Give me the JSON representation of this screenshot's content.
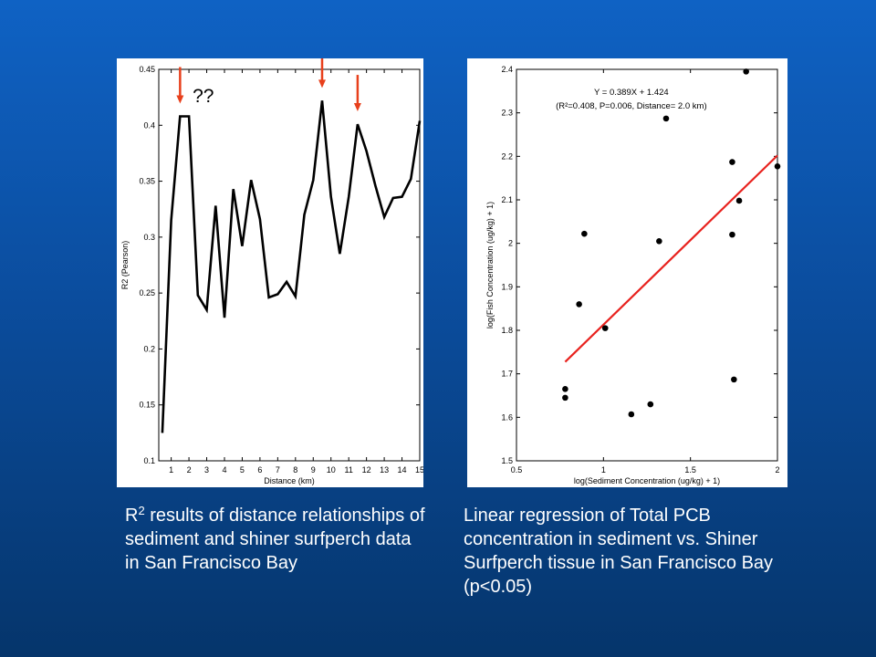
{
  "slide": {
    "background_top": "#0f62c4",
    "background_bottom": "#05356b",
    "left_caption": {
      "symbol": "R",
      "superscript": "2",
      "text": " results of distance relationships of sediment and shiner surfperch data in San Francisco Bay"
    },
    "right_caption": "Linear regression of Total PCB concentration in sediment vs. Shiner Surfperch tissue in San Francisco Bay (p<0.05)"
  },
  "chart_data": [
    {
      "type": "line",
      "xlabel": "Distance (km)",
      "ylabel": "R2 (Pearson)",
      "xlim": [
        0.3,
        15
      ],
      "ylim": [
        0.1,
        0.45
      ],
      "xticks": [
        1,
        2,
        3,
        4,
        5,
        6,
        7,
        8,
        9,
        10,
        11,
        12,
        13,
        14,
        15
      ],
      "yticks": [
        0.1,
        0.15,
        0.2,
        0.25,
        0.3,
        0.35,
        0.4,
        0.45
      ],
      "grid": false,
      "line_color": "#000000",
      "series": [
        {
          "x": [
            0.5,
            1,
            1.5,
            2,
            2.5,
            3,
            3.5,
            4,
            4.5,
            5,
            5.5,
            6,
            6.5,
            7,
            7.5,
            8,
            8.5,
            9,
            9.5,
            10,
            10.5,
            11,
            11.5,
            12,
            12.5,
            13,
            13.5,
            14,
            14.5,
            15
          ],
          "values": [
            0.125,
            0.315,
            0.408,
            0.408,
            0.248,
            0.235,
            0.328,
            0.228,
            0.343,
            0.292,
            0.351,
            0.316,
            0.246,
            0.249,
            0.26,
            0.247,
            0.32,
            0.351,
            0.422,
            0.336,
            0.285,
            0.336,
            0.401,
            0.377,
            0.346,
            0.318,
            0.335,
            0.336,
            0.352,
            0.404
          ]
        }
      ],
      "annotations": {
        "question_text": "??",
        "arrow_color": "#e8401c",
        "arrows_at_x": [
          1.5,
          9.5,
          11.5
        ]
      }
    },
    {
      "type": "scatter",
      "xlabel": "log(Sediment Concentration (ug/kg) + 1)",
      "ylabel": "log(Fish Concentration (ug/kg) + 1)",
      "xlim": [
        0.5,
        2
      ],
      "ylim": [
        1.5,
        2.4
      ],
      "xticks": [
        0.5,
        1,
        1.5,
        2
      ],
      "yticks": [
        1.5,
        1.6,
        1.7,
        1.8,
        1.9,
        2,
        2.1,
        2.2,
        2.3,
        2.4
      ],
      "grid": false,
      "point_color": "#000000",
      "points": [
        {
          "x": 0.78,
          "y": 1.665
        },
        {
          "x": 0.78,
          "y": 1.645
        },
        {
          "x": 0.86,
          "y": 1.86
        },
        {
          "x": 0.89,
          "y": 2.022
        },
        {
          "x": 1.01,
          "y": 1.805
        },
        {
          "x": 1.16,
          "y": 1.607
        },
        {
          "x": 1.27,
          "y": 1.63
        },
        {
          "x": 1.32,
          "y": 2.005
        },
        {
          "x": 1.36,
          "y": 2.287
        },
        {
          "x": 1.74,
          "y": 2.187
        },
        {
          "x": 1.74,
          "y": 2.02
        },
        {
          "x": 1.75,
          "y": 1.687
        },
        {
          "x": 1.78,
          "y": 2.098
        },
        {
          "x": 1.82,
          "y": 2.395
        },
        {
          "x": 2.0,
          "y": 2.177
        }
      ],
      "regression": {
        "equation": "Y = 0.389X + 1.424",
        "stats": "(R²=0.408, P=0.006, Distance= 2.0 km)",
        "slope": 0.389,
        "intercept": 1.424,
        "x_range": [
          0.78,
          2.0
        ],
        "color": "#e8221e"
      }
    }
  ]
}
